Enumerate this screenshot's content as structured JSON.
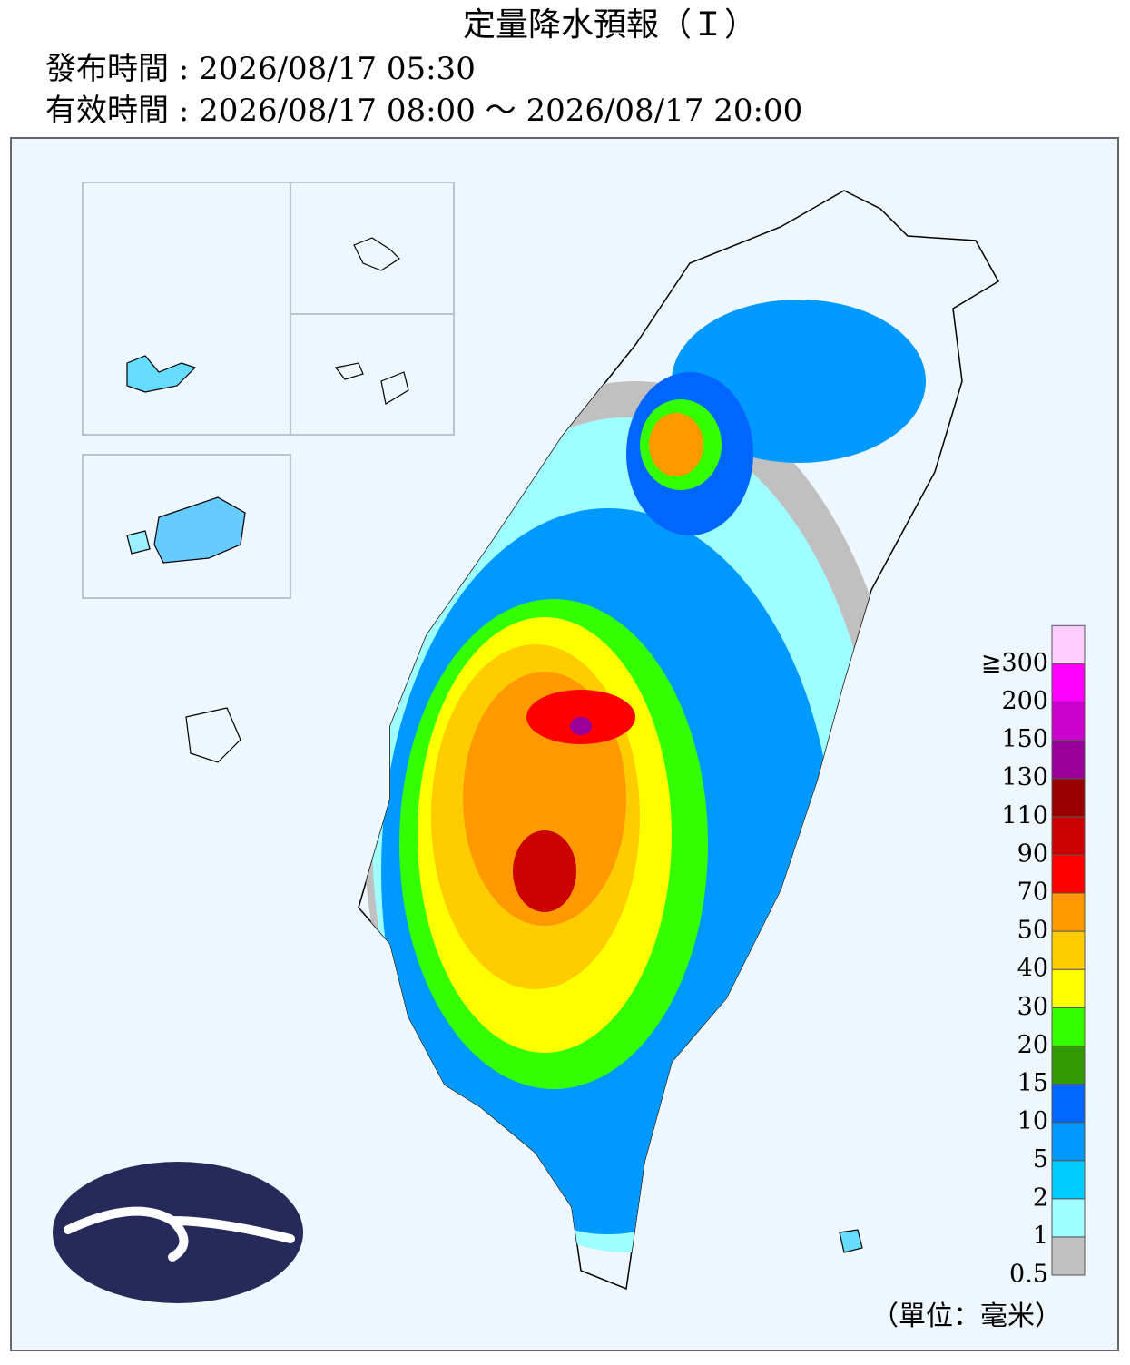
{
  "header": {
    "title": "定量降水預報（Ｉ）",
    "issued": "發布時間 : 2026/08/17 05:30",
    "valid": "有效時間 : 2026/08/17 08:00 ～ 2026/08/17 20:00"
  },
  "legend": {
    "unit": "（單位：毫米）",
    "levels": [
      {
        "label": "0.5",
        "color": "#c0c0c0"
      },
      {
        "label": "1",
        "color": "#9ffeff"
      },
      {
        "label": "2",
        "color": "#00ccff"
      },
      {
        "label": "5",
        "color": "#0099ff"
      },
      {
        "label": "10",
        "color": "#0066ff"
      },
      {
        "label": "15",
        "color": "#339900"
      },
      {
        "label": "20",
        "color": "#33ff00"
      },
      {
        "label": "30",
        "color": "#ffff00"
      },
      {
        "label": "40",
        "color": "#ffcc00"
      },
      {
        "label": "50",
        "color": "#ff9900"
      },
      {
        "label": "70",
        "color": "#ff0000"
      },
      {
        "label": "90",
        "color": "#cc0000"
      },
      {
        "label": "110",
        "color": "#990000"
      },
      {
        "label": "130",
        "color": "#990099"
      },
      {
        "label": "150",
        "color": "#cc00cc"
      },
      {
        "label": "200",
        "color": "#ff00ff"
      },
      {
        "label": "≧300",
        "color": "#ffccff"
      }
    ]
  }
}
